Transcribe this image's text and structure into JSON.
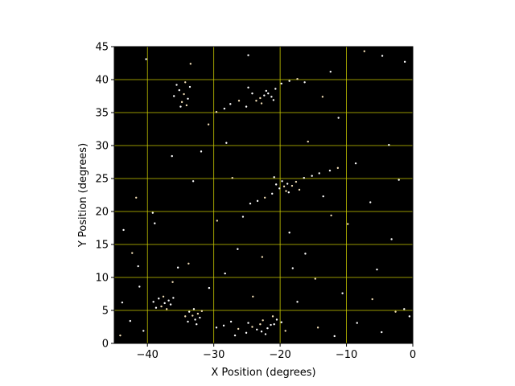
{
  "chart_data": {
    "type": "scatter",
    "title": "",
    "xlabel": "X Position (degrees)",
    "ylabel": "Y Position (degrees)",
    "xlim": [
      -45,
      0
    ],
    "ylim": [
      0,
      45
    ],
    "x_ticks": [
      -40,
      -30,
      -20,
      -10,
      0
    ],
    "y_ticks": [
      0,
      5,
      10,
      15,
      20,
      25,
      30,
      35,
      40,
      45
    ],
    "grid": true,
    "colors": {
      "background": "#000000",
      "grid": "#c8c800",
      "point_primary": "#ffffff",
      "point_secondary": "#f0dcb4"
    },
    "series": [
      {
        "values": [
          [
            -34.5,
            37.8
          ],
          [
            -35.2,
            38.4
          ],
          [
            -33.9,
            37.1
          ],
          [
            -34.8,
            36.6
          ],
          [
            -35.6,
            39.2
          ],
          [
            -33.6,
            38.9
          ],
          [
            -34.1,
            36.1
          ],
          [
            -36.0,
            37.5
          ],
          [
            -35.0,
            35.9
          ],
          [
            -34.3,
            39.6
          ],
          [
            -22.4,
            37.6
          ],
          [
            -21.8,
            37.9
          ],
          [
            -23.0,
            37.2
          ],
          [
            -22.1,
            38.3
          ],
          [
            -21.3,
            37.4
          ],
          [
            -23.6,
            36.8
          ],
          [
            -20.7,
            38.6
          ],
          [
            -24.2,
            37.9
          ],
          [
            -22.8,
            36.4
          ],
          [
            -21.0,
            36.9
          ],
          [
            -27.5,
            36.3
          ],
          [
            -26.2,
            36.8
          ],
          [
            -25.1,
            35.9
          ],
          [
            -28.4,
            35.6
          ],
          [
            -29.6,
            35.1
          ],
          [
            -19.8,
            39.4
          ],
          [
            -18.6,
            39.8
          ],
          [
            -17.4,
            40.1
          ],
          [
            -16.3,
            39.6
          ],
          [
            -24.8,
            38.8
          ],
          [
            -19.4,
            23.8
          ],
          [
            -18.9,
            24.2
          ],
          [
            -20.1,
            23.5
          ],
          [
            -18.2,
            23.9
          ],
          [
            -19.7,
            24.6
          ],
          [
            -20.6,
            24.1
          ],
          [
            -17.6,
            24.5
          ],
          [
            -18.7,
            22.9
          ],
          [
            -21.2,
            22.7
          ],
          [
            -19.1,
            23.1
          ],
          [
            -16.4,
            25.1
          ],
          [
            -15.2,
            25.4
          ],
          [
            -22.3,
            22.1
          ],
          [
            -23.4,
            21.6
          ],
          [
            -14.1,
            25.8
          ],
          [
            -17.1,
            23.3
          ],
          [
            -20.9,
            25.2
          ],
          [
            -12.5,
            26.2
          ],
          [
            -11.3,
            26.6
          ],
          [
            -24.5,
            21.2
          ],
          [
            -37.4,
            6.1
          ],
          [
            -37.9,
            5.6
          ],
          [
            -36.8,
            6.5
          ],
          [
            -38.3,
            6.8
          ],
          [
            -37.1,
            5.2
          ],
          [
            -36.5,
            5.9
          ],
          [
            -38.7,
            5.4
          ],
          [
            -37.6,
            7.1
          ],
          [
            -36.1,
            6.9
          ],
          [
            -39.1,
            6.3
          ],
          [
            -33.2,
            4.2
          ],
          [
            -32.8,
            3.6
          ],
          [
            -33.7,
            4.8
          ],
          [
            -32.4,
            4.5
          ],
          [
            -33.9,
            3.3
          ],
          [
            -32.1,
            3.9
          ],
          [
            -34.3,
            4.1
          ],
          [
            -33.0,
            5.2
          ],
          [
            -32.6,
            2.9
          ],
          [
            -31.8,
            4.9
          ],
          [
            -23.5,
            2.1
          ],
          [
            -22.8,
            1.8
          ],
          [
            -24.2,
            2.5
          ],
          [
            -21.9,
            2.3
          ],
          [
            -25.1,
            1.6
          ],
          [
            -23.0,
            2.9
          ],
          [
            -24.8,
            3.1
          ],
          [
            -22.2,
            1.4
          ],
          [
            -26.3,
            2.2
          ],
          [
            -21.4,
            2.8
          ],
          [
            -20.5,
            3.6
          ],
          [
            -21.1,
            4.1
          ],
          [
            -19.8,
            3.2
          ],
          [
            -20.9,
            2.9
          ],
          [
            -22.6,
            3.5
          ],
          [
            -27.4,
            3.3
          ],
          [
            -28.5,
            2.7
          ],
          [
            -19.2,
            1.9
          ],
          [
            -26.8,
            1.2
          ],
          [
            -29.6,
            2.4
          ],
          [
            -42.3,
            13.7
          ],
          [
            -43.6,
            17.2
          ],
          [
            -35.4,
            11.5
          ],
          [
            -33.8,
            12.1
          ],
          [
            -41.2,
            8.6
          ],
          [
            -38.9,
            18.2
          ],
          [
            -29.5,
            18.6
          ],
          [
            -26.4,
            14.3
          ],
          [
            -18.6,
            16.8
          ],
          [
            -12.3,
            19.4
          ],
          [
            -3.2,
            15.8
          ],
          [
            -5.4,
            11.2
          ],
          [
            -2.6,
            4.8
          ],
          [
            -1.3,
            5.2
          ],
          [
            -0.5,
            4.1
          ],
          [
            -6.1,
            6.7
          ],
          [
            -8.4,
            3.1
          ],
          [
            -10.6,
            7.6
          ],
          [
            -14.7,
            9.8
          ],
          [
            -16.2,
            13.6
          ],
          [
            -40.2,
            43.1
          ],
          [
            -33.5,
            42.4
          ],
          [
            -24.8,
            43.7
          ],
          [
            -12.4,
            41.2
          ],
          [
            -7.3,
            44.3
          ],
          [
            -4.6,
            43.6
          ],
          [
            -1.2,
            42.7
          ],
          [
            -13.6,
            37.4
          ],
          [
            -11.2,
            34.2
          ],
          [
            -36.3,
            28.4
          ],
          [
            -30.8,
            33.2
          ],
          [
            -28.1,
            30.4
          ],
          [
            -31.9,
            29.1
          ],
          [
            -15.8,
            30.6
          ],
          [
            -3.6,
            30.1
          ],
          [
            -8.6,
            27.3
          ],
          [
            -27.2,
            25.1
          ],
          [
            -33.1,
            24.6
          ],
          [
            -39.2,
            19.8
          ],
          [
            -41.7,
            22.1
          ],
          [
            -43.8,
            6.2
          ],
          [
            -42.6,
            3.4
          ],
          [
            -44.1,
            1.2
          ],
          [
            -40.6,
            1.9
          ],
          [
            -41.4,
            11.7
          ],
          [
            -36.2,
            9.3
          ],
          [
            -30.7,
            8.4
          ],
          [
            -28.3,
            10.6
          ],
          [
            -24.1,
            7.1
          ],
          [
            -17.4,
            6.3
          ],
          [
            -18.1,
            11.4
          ],
          [
            -22.7,
            13.1
          ],
          [
            -25.6,
            19.2
          ],
          [
            -13.5,
            22.3
          ],
          [
            -9.8,
            18.1
          ],
          [
            -2.1,
            24.8
          ],
          [
            -6.4,
            21.4
          ],
          [
            -14.3,
            2.4
          ],
          [
            -11.8,
            1.1
          ],
          [
            -4.7,
            1.7
          ]
        ]
      }
    ]
  }
}
